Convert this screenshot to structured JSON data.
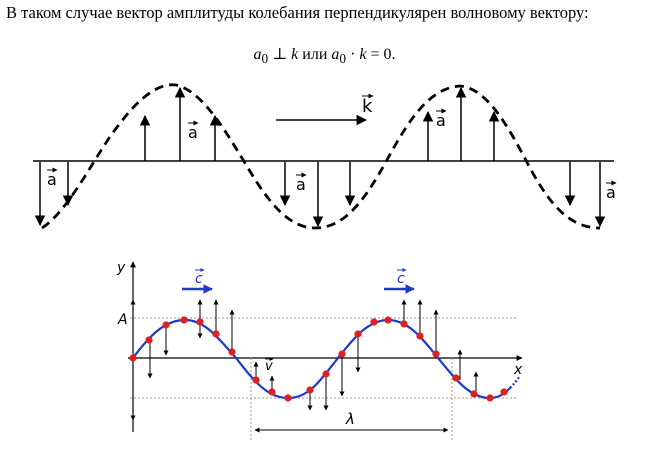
{
  "text": {
    "intro": "В таком случае вектор амплитуды колебания перпендикулярен волновому вектору:",
    "formula_a": "a",
    "formula_sub": "0",
    "formula_perp": "⊥",
    "formula_k": "k",
    "formula_or": "или",
    "formula_dot": "·",
    "formula_eq": "= 0."
  },
  "figure1": {
    "wave_vector_label": "k",
    "amplitude_label": "a"
  },
  "figure2": {
    "y_axis_label": "y",
    "x_axis_label": "x",
    "amplitude_tick_label": "A",
    "phase_velocity_label": "c",
    "velocity_label": "v",
    "wavelength_label": "λ"
  },
  "colors": {
    "ink": "#000000",
    "wave_blue": "#1e38c8",
    "point_red": "#e02020",
    "grid_gray": "#9a9a9a"
  }
}
